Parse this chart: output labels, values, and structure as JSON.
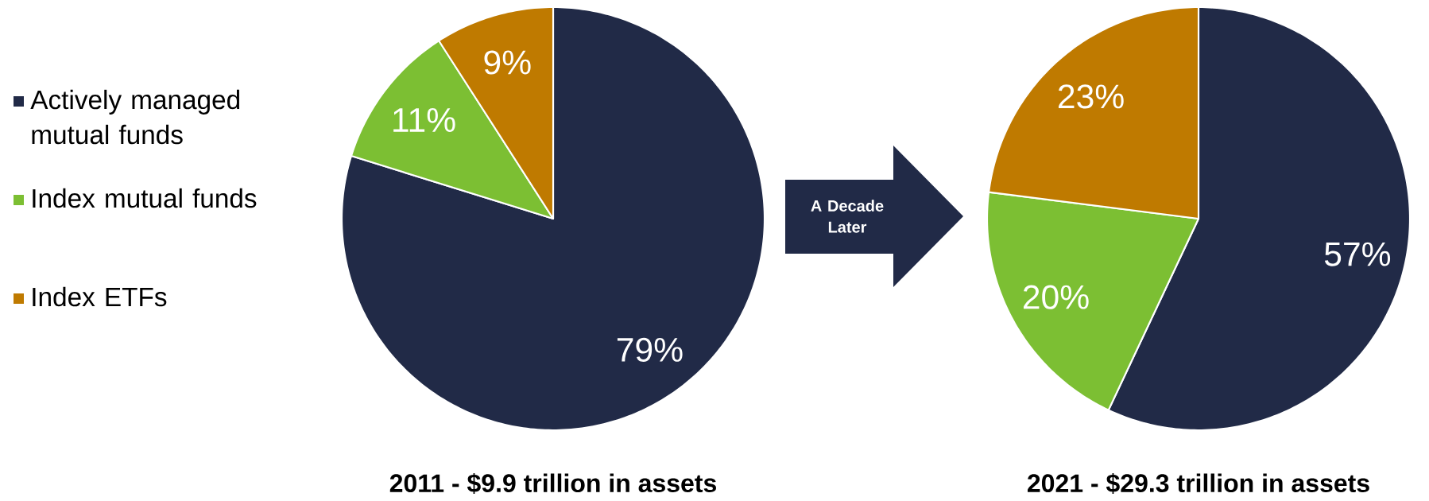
{
  "chart_data": [
    {
      "type": "pie",
      "title": "2011 - $9.9 trillion in assets",
      "categories": [
        "Actively managed mutual funds",
        "Index mutual funds",
        "Index ETFs"
      ],
      "values": [
        79,
        11,
        9
      ],
      "colors": [
        "#212a47",
        "#7cbf33",
        "#bf7a00"
      ],
      "value_labels": [
        "79%",
        "11%",
        "9%"
      ],
      "legend": "left"
    },
    {
      "type": "pie",
      "title": "2021 - $29.3 trillion in assets",
      "categories": [
        null,
        null,
        null
      ],
      "values": [
        57,
        20,
        23
      ],
      "colors": [
        "#212a47",
        "#7cbf33",
        "#bf7a00"
      ],
      "value_labels": [
        "57%",
        "20%",
        "23%"
      ],
      "annotations": [
        "A Decade Later"
      ],
      "legend": false
    }
  ]
}
